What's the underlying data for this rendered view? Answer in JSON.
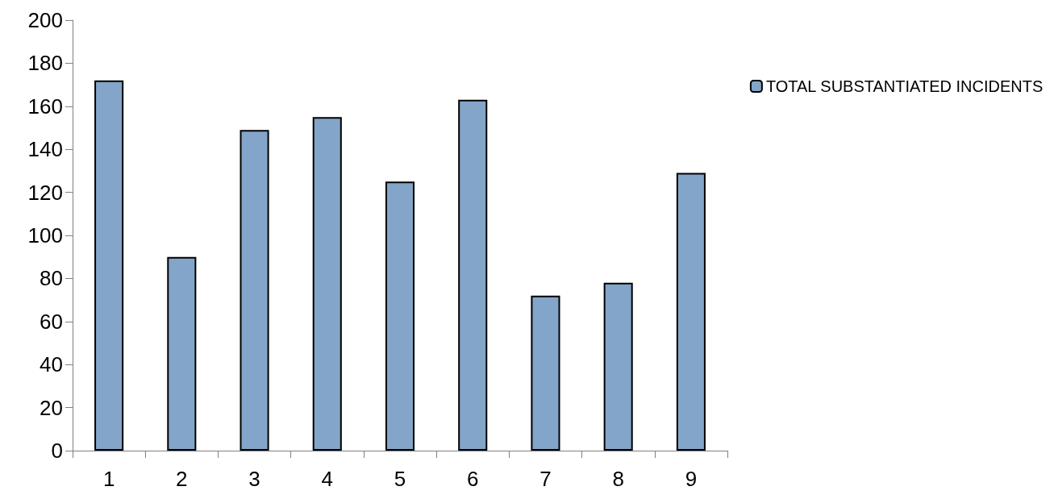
{
  "chart_data": {
    "type": "bar",
    "categories": [
      "1",
      "2",
      "3",
      "4",
      "5",
      "6",
      "7",
      "8",
      "9"
    ],
    "series": [
      {
        "name": "TOTAL SUBSTANTIATED INCIDENTS",
        "color": "#83a5c9",
        "values": [
          172,
          90,
          149,
          155,
          125,
          163,
          72,
          78,
          129
        ]
      }
    ],
    "ylim": [
      0,
      200
    ],
    "yticks": [
      0,
      20,
      40,
      60,
      80,
      100,
      120,
      140,
      160,
      180,
      200
    ],
    "grid": false,
    "legend": "right"
  }
}
